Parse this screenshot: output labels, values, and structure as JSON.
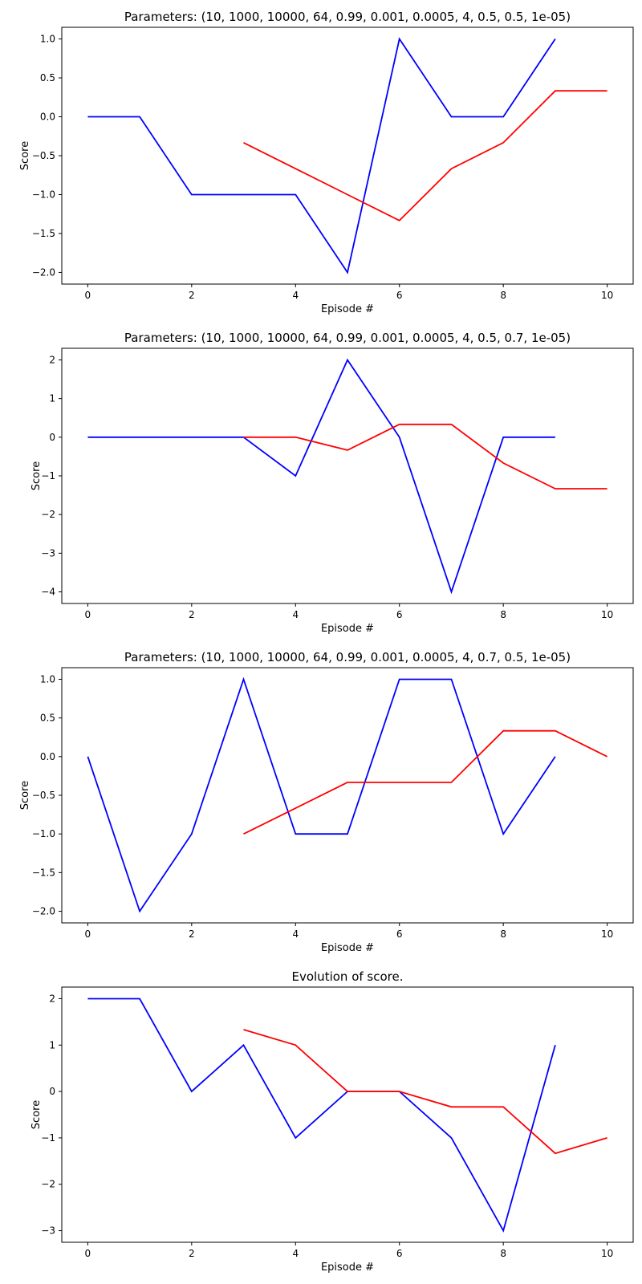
{
  "chart_data": [
    {
      "type": "line",
      "title": "Parameters: (10, 1000, 10000, 64, 0.99, 0.001, 0.0005, 4, 0.5, 0.5, 1e-05)",
      "xlabel": "Episode #",
      "ylabel": "Score",
      "xlim": [
        -0.5,
        10.5
      ],
      "ylim": [
        -2.15,
        1.15
      ],
      "xticks": [
        0,
        2,
        4,
        6,
        8,
        10
      ],
      "yticks": [
        -2.0,
        -1.5,
        -1.0,
        -0.5,
        0.0,
        0.5,
        1.0
      ],
      "ytick_labels": [
        "−2.0",
        "−1.5",
        "−1.0",
        "−0.5",
        "0.0",
        "0.5",
        "1.0"
      ],
      "grid": false,
      "series": [
        {
          "color": "#0000ff",
          "x": [
            0,
            1,
            2,
            3,
            4,
            5,
            6,
            7,
            8,
            9
          ],
          "y": [
            0,
            0,
            -1,
            -1,
            -1,
            -2,
            1,
            0,
            0,
            1
          ]
        },
        {
          "color": "#ff0000",
          "x": [
            3,
            4,
            5,
            6,
            7,
            8,
            9,
            10
          ],
          "y": [
            -0.333,
            -0.667,
            -1.0,
            -1.333,
            -0.667,
            -0.333,
            0.333,
            0.333
          ]
        }
      ]
    },
    {
      "type": "line",
      "title": "Parameters: (10, 1000, 10000, 64, 0.99, 0.001, 0.0005, 4, 0.5, 0.7, 1e-05)",
      "xlabel": "Episode #",
      "ylabel": "Score",
      "xlim": [
        -0.5,
        10.5
      ],
      "ylim": [
        -4.3,
        2.3
      ],
      "xticks": [
        0,
        2,
        4,
        6,
        8,
        10
      ],
      "yticks": [
        -4,
        -3,
        -2,
        -1,
        0,
        1,
        2
      ],
      "ytick_labels": [
        "−4",
        "−3",
        "−2",
        "−1",
        "0",
        "1",
        "2"
      ],
      "grid": false,
      "series": [
        {
          "color": "#0000ff",
          "x": [
            0,
            1,
            2,
            3,
            4,
            5,
            6,
            7,
            8,
            9
          ],
          "y": [
            0,
            0,
            0,
            0,
            -1,
            2,
            0,
            -4,
            0,
            0
          ]
        },
        {
          "color": "#ff0000",
          "x": [
            3,
            4,
            5,
            6,
            7,
            8,
            9,
            10
          ],
          "y": [
            0,
            0,
            -0.333,
            0.333,
            0.333,
            -0.667,
            -1.333,
            -1.333
          ]
        }
      ]
    },
    {
      "type": "line",
      "title": "Parameters: (10, 1000, 10000, 64, 0.99, 0.001, 0.0005, 4, 0.7, 0.5, 1e-05)",
      "xlabel": "Episode #",
      "ylabel": "Score",
      "xlim": [
        -0.5,
        10.5
      ],
      "ylim": [
        -2.15,
        1.15
      ],
      "xticks": [
        0,
        2,
        4,
        6,
        8,
        10
      ],
      "yticks": [
        -2.0,
        -1.5,
        -1.0,
        -0.5,
        0.0,
        0.5,
        1.0
      ],
      "ytick_labels": [
        "−2.0",
        "−1.5",
        "−1.0",
        "−0.5",
        "0.0",
        "0.5",
        "1.0"
      ],
      "grid": false,
      "series": [
        {
          "color": "#0000ff",
          "x": [
            0,
            1,
            2,
            3,
            4,
            5,
            6,
            7,
            8,
            9
          ],
          "y": [
            0,
            -2,
            -1,
            1,
            -1,
            -1,
            1,
            1,
            -1,
            0
          ]
        },
        {
          "color": "#ff0000",
          "x": [
            3,
            4,
            5,
            6,
            7,
            8,
            9,
            10
          ],
          "y": [
            -1.0,
            -0.667,
            -0.333,
            -0.333,
            -0.333,
            0.333,
            0.333,
            0.0
          ]
        }
      ]
    },
    {
      "type": "line",
      "title": "Evolution of score.",
      "xlabel": "Episode #",
      "ylabel": "Score",
      "xlim": [
        -0.5,
        10.5
      ],
      "ylim": [
        -3.25,
        2.25
      ],
      "xticks": [
        0,
        2,
        4,
        6,
        8,
        10
      ],
      "yticks": [
        -3,
        -2,
        -1,
        0,
        1,
        2
      ],
      "ytick_labels": [
        "−3",
        "−2",
        "−1",
        "0",
        "1",
        "2"
      ],
      "grid": false,
      "series": [
        {
          "color": "#0000ff",
          "x": [
            0,
            1,
            2,
            3,
            4,
            5,
            6,
            7,
            8,
            9
          ],
          "y": [
            2,
            2,
            0,
            1,
            -1,
            0,
            0,
            -1,
            -3,
            1
          ]
        },
        {
          "color": "#ff0000",
          "x": [
            3,
            4,
            5,
            6,
            7,
            8,
            9,
            10
          ],
          "y": [
            1.333,
            1.0,
            0.0,
            0.0,
            -0.333,
            -0.333,
            -1.333,
            -1.0
          ]
        }
      ]
    }
  ]
}
